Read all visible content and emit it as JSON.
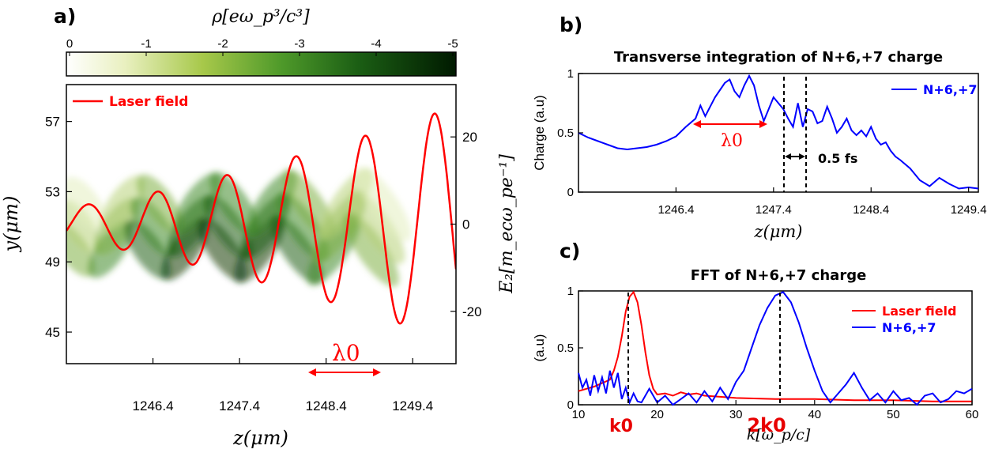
{
  "colors": {
    "laser": "#ff0000",
    "charge": "#0000ff",
    "density_dark": "#002800"
  },
  "panel_a": {
    "label": "a)",
    "colorbar_label": "ρ[eω_p³/c³]",
    "colorbar_ticks": [
      "0",
      "-1",
      "-2",
      "-3",
      "-4",
      "-5"
    ],
    "xlabel": "z(μm)",
    "ylabel": "y(μm)",
    "ylabel_right": "E₂[m_ecω_pe⁻¹]",
    "legend": "Laser field",
    "annotation": "λ0"
  },
  "panel_b": {
    "label": "b)",
    "title": "Transverse integration of N+6,+7 charge",
    "ylabel": "Charge (a.u)",
    "xlabel": "z(μm)",
    "legend": "N+6,+7",
    "annotation_lambda": "λ0",
    "annotation_fs": "0.5 fs"
  },
  "panel_c": {
    "label": "c)",
    "title": "FFT of N+6,+7 charge",
    "ylabel": "(a.u)",
    "xlabel": "k[ω_p/c]",
    "legend_laser": "Laser field",
    "legend_charge": "N+6,+7",
    "k0": "k0",
    "k2": "2k0"
  },
  "chart_data": [
    {
      "type": "heatmap",
      "panel": "a",
      "xlabel": "z(μm)",
      "ylabel": "y(μm)",
      "x_ticks": [
        1246.4,
        1247.4,
        1248.4,
        1249.4
      ],
      "y_ticks": [
        45,
        49,
        53,
        57
      ],
      "xlim": [
        1245.4,
        1249.9
      ],
      "ylim": [
        43.2,
        59.1
      ],
      "colorbar": {
        "label": "ρ[eω_p³/c³]",
        "range": [
          0,
          -5
        ],
        "ticks": [
          0,
          -1,
          -2,
          -3,
          -4,
          -5
        ]
      },
      "overlay_series": [
        {
          "name": "Laser field",
          "right_axis": "E₂[m_ecω_pe⁻¹]",
          "right_ticks": [
            20,
            0,
            -20
          ],
          "right_lim": [
            -32,
            32
          ],
          "amplitude_at_start": 4,
          "amplitude_at_end": 27,
          "wavelength_um": 0.8
        }
      ]
    },
    {
      "type": "line",
      "panel": "b",
      "title": "Transverse integration of N+6,+7 charge",
      "xlabel": "z(μm)",
      "ylabel": "Charge (a.u)",
      "x_ticks": [
        1246.4,
        1247.4,
        1248.4,
        1249.4
      ],
      "y_ticks": [
        0,
        0.5,
        1
      ],
      "xlim": [
        1245.4,
        1249.5
      ],
      "ylim": [
        0,
        1.0
      ],
      "series": [
        {
          "name": "N+6,+7",
          "x": [
            1245.4,
            1245.5,
            1245.6,
            1245.7,
            1245.8,
            1245.9,
            1246.0,
            1246.1,
            1246.2,
            1246.3,
            1246.4,
            1246.5,
            1246.6,
            1246.65,
            1246.7,
            1246.8,
            1246.9,
            1246.95,
            1247.0,
            1247.05,
            1247.1,
            1247.15,
            1247.2,
            1247.25,
            1247.3,
            1247.35,
            1247.4,
            1247.5,
            1247.55,
            1247.6,
            1247.65,
            1247.7,
            1247.75,
            1247.8,
            1247.85,
            1247.9,
            1247.95,
            1248.0,
            1248.05,
            1248.1,
            1248.15,
            1248.2,
            1248.25,
            1248.3,
            1248.35,
            1248.4,
            1248.45,
            1248.5,
            1248.55,
            1248.6,
            1248.65,
            1248.7,
            1248.8,
            1248.9,
            1249.0,
            1249.1,
            1249.2,
            1249.3,
            1249.4,
            1249.5
          ],
          "y": [
            0.5,
            0.46,
            0.43,
            0.4,
            0.37,
            0.36,
            0.37,
            0.38,
            0.4,
            0.43,
            0.47,
            0.55,
            0.62,
            0.73,
            0.64,
            0.8,
            0.92,
            0.95,
            0.85,
            0.8,
            0.9,
            0.98,
            0.9,
            0.73,
            0.6,
            0.7,
            0.8,
            0.7,
            0.62,
            0.55,
            0.75,
            0.55,
            0.7,
            0.68,
            0.58,
            0.6,
            0.72,
            0.62,
            0.5,
            0.55,
            0.62,
            0.52,
            0.48,
            0.52,
            0.47,
            0.55,
            0.45,
            0.4,
            0.42,
            0.35,
            0.3,
            0.27,
            0.2,
            0.1,
            0.05,
            0.12,
            0.07,
            0.03,
            0.04,
            0.03
          ]
        }
      ]
    },
    {
      "type": "line",
      "panel": "c",
      "title": "FFT of N+6,+7 charge",
      "xlabel": "k[ω_p/c]",
      "ylabel": "(a.u)",
      "x_ticks": [
        10,
        20,
        30,
        40,
        50,
        60
      ],
      "y_ticks": [
        0,
        0.5,
        1
      ],
      "xlim": [
        10,
        60
      ],
      "ylim": [
        0,
        1.0
      ],
      "series": [
        {
          "name": "Laser field",
          "x": [
            10,
            11,
            12,
            13,
            14,
            14.5,
            15,
            15.5,
            16,
            16.5,
            17,
            17.5,
            18,
            18.5,
            19,
            19.5,
            20,
            21,
            22,
            23,
            24,
            25,
            26,
            28,
            30,
            35,
            40,
            45,
            50,
            55,
            60
          ],
          "y": [
            0.12,
            0.14,
            0.16,
            0.19,
            0.22,
            0.3,
            0.42,
            0.6,
            0.82,
            0.95,
            0.99,
            0.9,
            0.7,
            0.46,
            0.26,
            0.14,
            0.09,
            0.1,
            0.08,
            0.11,
            0.09,
            0.1,
            0.08,
            0.07,
            0.06,
            0.05,
            0.05,
            0.04,
            0.04,
            0.03,
            0.03
          ]
        },
        {
          "name": "N+6,+7",
          "x": [
            10,
            10.5,
            11,
            11.5,
            12,
            12.5,
            13,
            13.5,
            14,
            14.5,
            15,
            15.5,
            16,
            16.5,
            17,
            17.5,
            18,
            19,
            20,
            21,
            22,
            23,
            24,
            25,
            26,
            27,
            28,
            29,
            30,
            31,
            32,
            33,
            34,
            35,
            36,
            37,
            38,
            39,
            40,
            41,
            42,
            43,
            44,
            45,
            46,
            47,
            48,
            49,
            50,
            51,
            52,
            53,
            54,
            55,
            56,
            57,
            58,
            59,
            60
          ],
          "y": [
            0.28,
            0.15,
            0.22,
            0.08,
            0.26,
            0.12,
            0.24,
            0.1,
            0.3,
            0.15,
            0.28,
            0.05,
            0.15,
            0.02,
            0.1,
            0.03,
            0.02,
            0.14,
            0.02,
            0.08,
            0.0,
            0.05,
            0.1,
            0.02,
            0.12,
            0.03,
            0.15,
            0.05,
            0.2,
            0.3,
            0.5,
            0.7,
            0.85,
            0.96,
            0.99,
            0.9,
            0.72,
            0.5,
            0.3,
            0.12,
            0.02,
            0.1,
            0.18,
            0.28,
            0.15,
            0.04,
            0.1,
            0.02,
            0.12,
            0.04,
            0.06,
            0.0,
            0.08,
            0.1,
            0.02,
            0.05,
            0.12,
            0.1,
            0.14
          ]
        }
      ]
    }
  ]
}
